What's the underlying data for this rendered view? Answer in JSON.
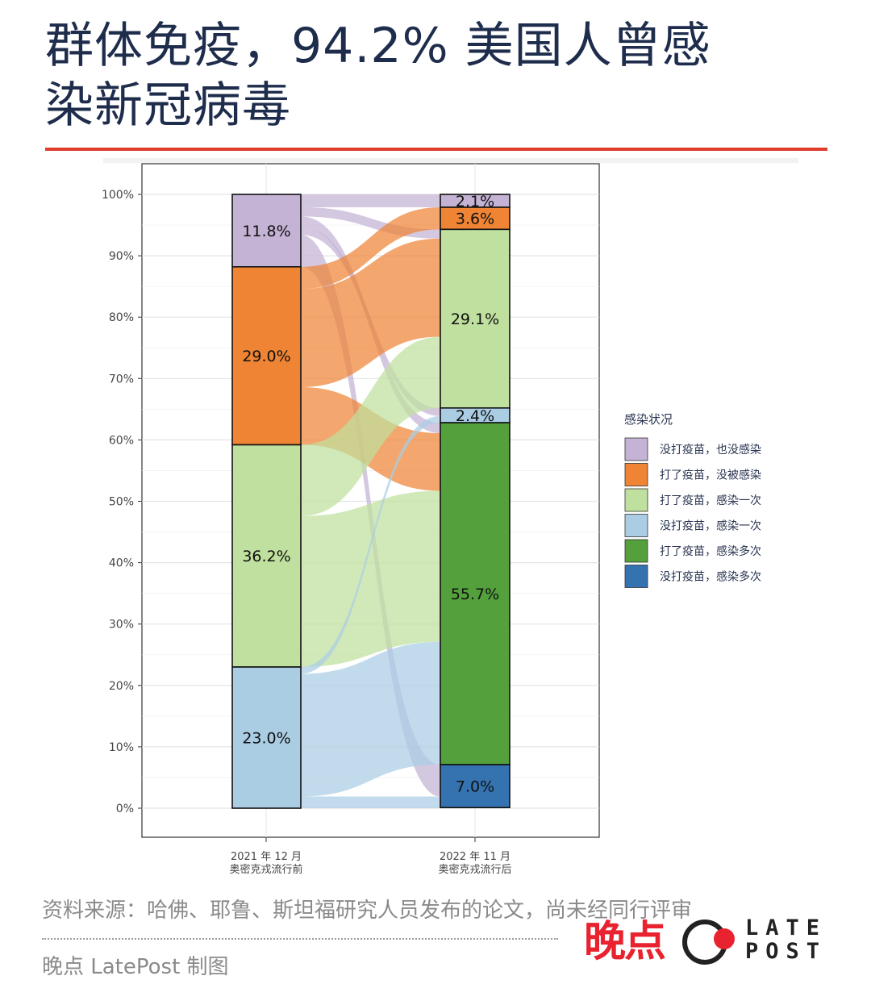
{
  "header": {
    "title_line1": "群体免疫，94.2% 美国人曾感",
    "title_line2": "染新冠病毒"
  },
  "chart_data": {
    "type": "bar",
    "subtype": "alluvial",
    "stacked": true,
    "categories": [
      {
        "line1": "2021 年 12 月",
        "line2": "奥密克戎流行前"
      },
      {
        "line1": "2022 年 11 月",
        "line2": "奥密克戎流行后"
      }
    ],
    "ylim": [
      0,
      100
    ],
    "yticks": [
      "0%",
      "10%",
      "20%",
      "30%",
      "40%",
      "50%",
      "60%",
      "70%",
      "80%",
      "90%",
      "100%"
    ],
    "legend_title": "感染状况",
    "legend_position": "right",
    "series": [
      {
        "name": "没打疫苗，也没感染",
        "color": "#c4b3d5",
        "values": [
          11.8,
          2.1
        ],
        "labels": [
          "11.8%",
          "2.1%"
        ]
      },
      {
        "name": "打了疫苗，没被感染",
        "color": "#ee8434",
        "values": [
          29.0,
          3.6
        ],
        "labels": [
          "29.0%",
          "3.6%"
        ]
      },
      {
        "name": "打了疫苗，感染一次",
        "color": "#bfe09e",
        "values": [
          36.2,
          29.1
        ],
        "labels": [
          "36.2%",
          "29.1%"
        ]
      },
      {
        "name": "没打疫苗，感染一次",
        "color": "#aacde4",
        "values": [
          23.0,
          2.4
        ],
        "labels": [
          "23.0%",
          "2.4%"
        ]
      },
      {
        "name": "打了疫苗，感染多次",
        "color": "#54a03c",
        "values": [
          0,
          55.7
        ],
        "labels": [
          "",
          "55.7%"
        ]
      },
      {
        "name": "没打疫苗，感染多次",
        "color": "#3573b0",
        "values": [
          0,
          7.0
        ],
        "labels": [
          "",
          "7.0%"
        ]
      }
    ],
    "flows": [
      {
        "from": "没打疫苗，也没感染",
        "to": "没打疫苗，也没感染",
        "value": 2.1
      },
      {
        "from": "没打疫苗，也没感染",
        "to": "打了疫苗，感染一次",
        "value": 1.5
      },
      {
        "from": "没打疫苗，也没感染",
        "to": "打了疫苗，感染多次",
        "value": 1.7
      },
      {
        "from": "没打疫苗，也没感染",
        "to": "没打疫苗，感染一次",
        "value": 1.3
      },
      {
        "from": "没打疫苗，也没感染",
        "to": "没打疫苗，感染多次",
        "value": 5.2
      },
      {
        "from": "打了疫苗，没被感染",
        "to": "打了疫苗，没被感染",
        "value": 3.6
      },
      {
        "from": "打了疫苗，没被感染",
        "to": "打了疫苗，感染一次",
        "value": 16.0
      },
      {
        "from": "打了疫苗，没被感染",
        "to": "打了疫苗，感染多次",
        "value": 9.4
      },
      {
        "from": "打了疫苗，感染一次",
        "to": "打了疫苗，感染一次",
        "value": 11.6
      },
      {
        "from": "打了疫苗，感染一次",
        "to": "打了疫苗，感染多次",
        "value": 24.6
      },
      {
        "from": "没打疫苗，感染一次",
        "to": "没打疫苗，感染一次",
        "value": 1.1
      },
      {
        "from": "没打疫苗，感染一次",
        "to": "打了疫苗，感染多次",
        "value": 20.0
      },
      {
        "from": "没打疫苗，感染一次",
        "to": "没打疫苗，感染多次",
        "value": 1.9
      }
    ]
  },
  "footer": {
    "source": "资料来源：哈佛、耶鲁、斯坦福研究人员发布的论文，尚未经同行评审",
    "credit": "晚点 LatePost 制图",
    "brand_cn": "晚点",
    "brand_en_line1": "LATE",
    "brand_en_line2": "POST"
  }
}
